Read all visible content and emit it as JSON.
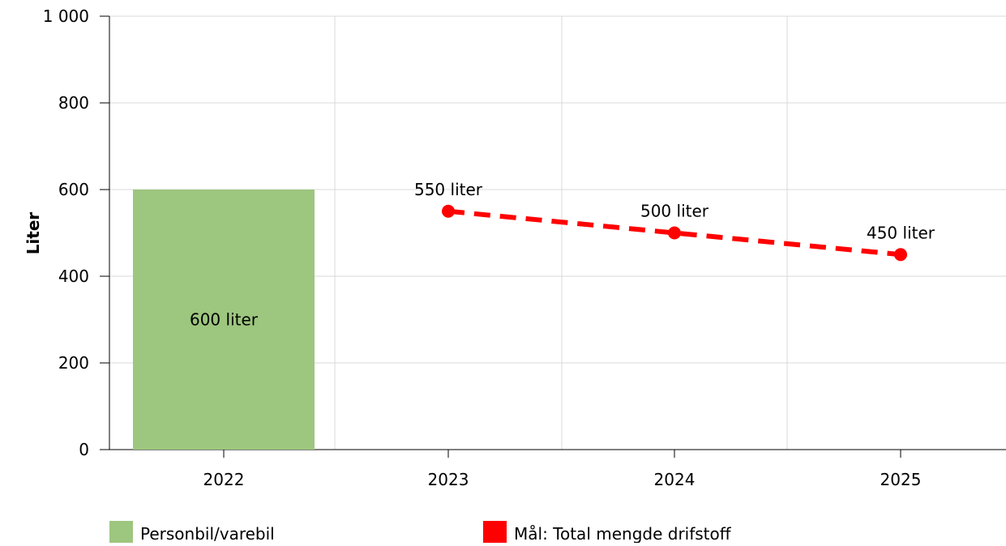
{
  "chart_data": {
    "type": "bar",
    "ylabel": "Liter",
    "xlabel": "",
    "categories": [
      "2022",
      "2023",
      "2024",
      "2025"
    ],
    "ylim": [
      0,
      1000
    ],
    "ytick_values": [
      0,
      200,
      400,
      600,
      800,
      1000
    ],
    "ytick_labels": [
      "0",
      "200",
      "400",
      "600",
      "800",
      "1 000"
    ],
    "grid": true,
    "legend_position": "bottom",
    "series": [
      {
        "name": "Personbil/varebil",
        "type": "bar",
        "color": "#9dc67e",
        "points": [
          {
            "x": "2022",
            "y": 600,
            "label": "600 liter"
          }
        ]
      },
      {
        "name": "Mål: Total mengde drifstoff",
        "type": "line",
        "style": "dashed",
        "color": "#ff0000",
        "points": [
          {
            "x": "2023",
            "y": 550,
            "label": "550 liter"
          },
          {
            "x": "2024",
            "y": 500,
            "label": "500 liter"
          },
          {
            "x": "2025",
            "y": 450,
            "label": "450 liter"
          }
        ]
      }
    ]
  }
}
